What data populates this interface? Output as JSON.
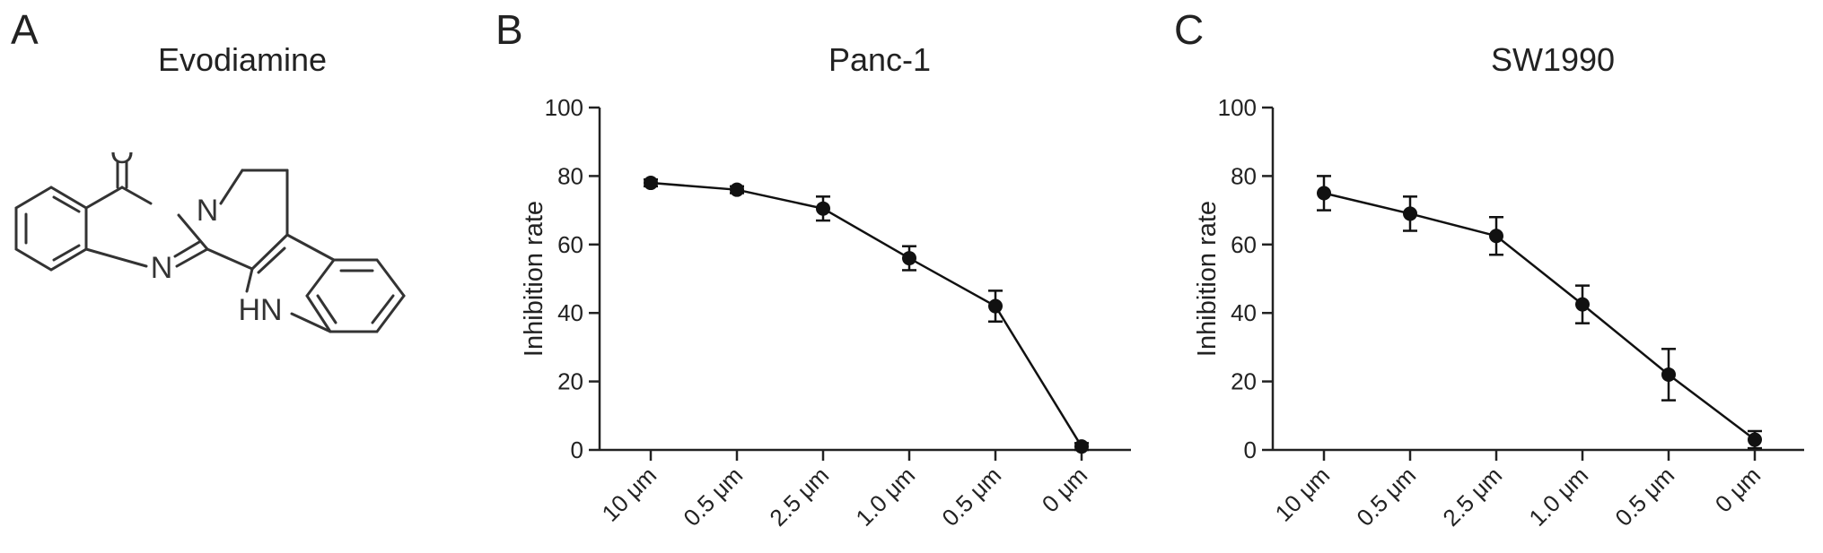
{
  "panels": {
    "a": {
      "letter": "A",
      "title": "Evodiamine",
      "atoms": {
        "o": "O",
        "n1": "N",
        "n2": "N",
        "nh": "HN"
      }
    },
    "b": {
      "letter": "B"
    },
    "c": {
      "letter": "C"
    }
  },
  "chart_data": [
    {
      "type": "line",
      "title": "Panc-1",
      "ylabel": "Inhibition rate",
      "xlabel": "",
      "categories": [
        "10 μm",
        "0.5 μm",
        "2.5 μm",
        "1.0 μm",
        "0.5 μm",
        "0 μm"
      ],
      "values": [
        78,
        76,
        70.5,
        56,
        42,
        1
      ],
      "errors": [
        1,
        1,
        3.5,
        3.5,
        4.5,
        1
      ],
      "ylim": [
        0,
        100
      ],
      "yticks": [
        0,
        20,
        40,
        60,
        80,
        100
      ],
      "grid": false,
      "legend": "none",
      "color": "#111111"
    },
    {
      "type": "line",
      "title": "SW1990",
      "ylabel": "Inhibition rate",
      "xlabel": "",
      "categories": [
        "10 μm",
        "0.5 μm",
        "2.5 μm",
        "1.0 μm",
        "0.5 μm",
        "0 μm"
      ],
      "values": [
        75,
        69,
        62.5,
        42.5,
        22,
        3
      ],
      "errors": [
        5,
        5,
        5.5,
        5.5,
        7.5,
        2.5
      ],
      "ylim": [
        0,
        100
      ],
      "yticks": [
        0,
        20,
        40,
        60,
        80,
        100
      ],
      "grid": false,
      "legend": "none",
      "color": "#111111"
    }
  ]
}
